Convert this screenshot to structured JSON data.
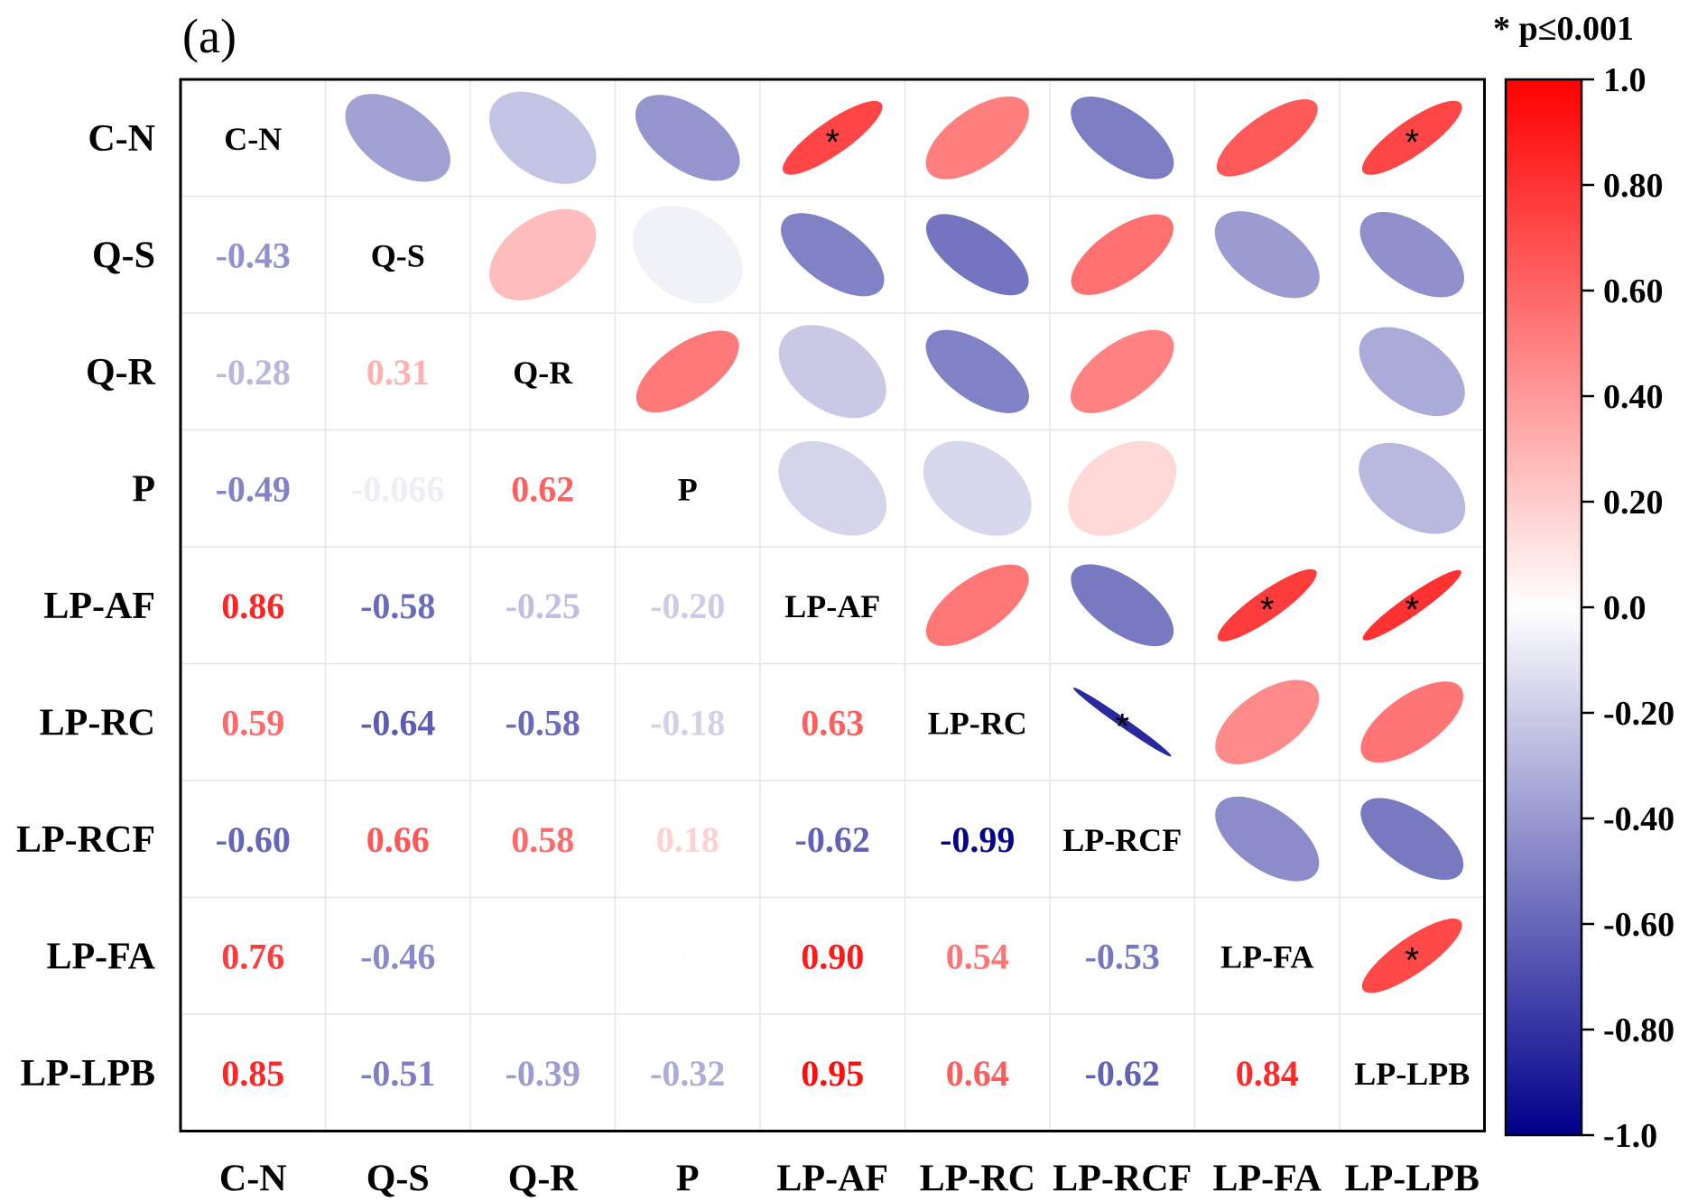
{
  "panel_label": "(a)",
  "significance_note": "* p≤0.001",
  "chart_data": {
    "type": "heatmap",
    "title": "",
    "variables": [
      "C-N",
      "Q-S",
      "Q-R",
      "P",
      "LP-AF",
      "LP-RC",
      "LP-RCF",
      "LP-FA",
      "LP-LPB"
    ],
    "matrix": [
      [
        1.0,
        -0.43,
        -0.28,
        -0.49,
        0.86,
        0.59,
        -0.6,
        0.76,
        0.85
      ],
      [
        -0.43,
        1.0,
        0.31,
        -0.066,
        -0.58,
        -0.64,
        0.66,
        -0.46,
        -0.51
      ],
      [
        -0.28,
        0.31,
        1.0,
        0.62,
        -0.25,
        -0.58,
        0.58,
        0.0,
        -0.39
      ],
      [
        -0.49,
        -0.066,
        0.62,
        1.0,
        -0.2,
        -0.18,
        0.18,
        -0.0055,
        -0.32
      ],
      [
        0.86,
        -0.58,
        -0.25,
        -0.2,
        1.0,
        0.63,
        -0.62,
        0.9,
        0.95
      ],
      [
        0.59,
        -0.64,
        -0.58,
        -0.18,
        0.63,
        1.0,
        -0.99,
        0.54,
        0.64
      ],
      [
        -0.6,
        0.66,
        0.58,
        0.18,
        -0.62,
        -0.99,
        1.0,
        -0.53,
        -0.62
      ],
      [
        0.76,
        -0.46,
        0.0,
        -0.0055,
        0.9,
        0.54,
        -0.53,
        1.0,
        0.84
      ],
      [
        0.85,
        -0.51,
        -0.39,
        -0.32,
        0.95,
        0.64,
        -0.62,
        0.84,
        1.0
      ]
    ],
    "lower_labels": [
      [
        "",
        "",
        "",
        "",
        "",
        "",
        "",
        "",
        ""
      ],
      [
        "-0.43",
        "",
        "",
        "",
        "",
        "",
        "",
        "",
        ""
      ],
      [
        "-0.28",
        "0.31",
        "",
        "",
        "",
        "",
        "",
        "",
        ""
      ],
      [
        "-0.49",
        "-0.066",
        "0.62",
        "",
        "",
        "",
        "",
        "",
        ""
      ],
      [
        "0.86",
        "-0.58",
        "-0.25",
        "-0.20",
        "",
        "",
        "",
        "",
        ""
      ],
      [
        "0.59",
        "-0.64",
        "-0.58",
        "-0.18",
        "0.63",
        "",
        "",
        "",
        ""
      ],
      [
        "-0.60",
        "0.66",
        "0.58",
        "0.18",
        "-0.62",
        "-0.99",
        "",
        "",
        ""
      ],
      [
        "0.76",
        "-0.46",
        "",
        "-0.0055",
        "0.90",
        "0.54",
        "-0.53",
        "",
        ""
      ],
      [
        "0.85",
        "-0.51",
        "-0.39",
        "-0.32",
        "0.95",
        "0.64",
        "-0.62",
        "0.84",
        ""
      ]
    ],
    "significant": [
      [
        0,
        4
      ],
      [
        0,
        8
      ],
      [
        4,
        7
      ],
      [
        4,
        8
      ],
      [
        5,
        6
      ],
      [
        7,
        8
      ]
    ],
    "upper_display": "ellipse",
    "lower_display": "number",
    "colorbar": {
      "min": -1.0,
      "max": 1.0,
      "ticks": [
        "1.0",
        "0.80",
        "0.60",
        "0.40",
        "0.20",
        "0.0",
        "-0.20",
        "-0.40",
        "-0.60",
        "-0.80",
        "-1.0"
      ],
      "low_color": "#00008b",
      "mid_color": "#ffffff",
      "high_color": "#ff0000"
    }
  }
}
